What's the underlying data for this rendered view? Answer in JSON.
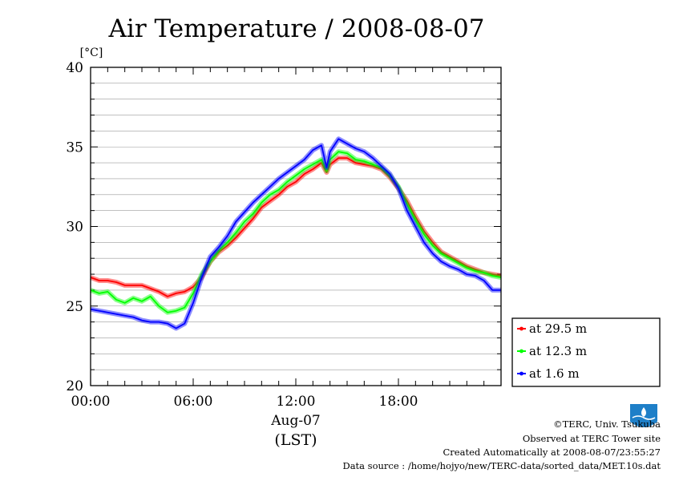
{
  "chart_data": {
    "type": "line",
    "title": "Air Temperature / 2008-08-07",
    "ylabel": "[°C]",
    "xlabel": "(LST)",
    "date_label": "Aug-07",
    "ylim": [
      20,
      40
    ],
    "xlim_hours": [
      0,
      24
    ],
    "yticks": [
      "20",
      "25",
      "30",
      "35",
      "40"
    ],
    "xticks": [
      {
        "h": 0,
        "label": "00:00"
      },
      {
        "h": 6,
        "label": "06:00"
      },
      {
        "h": 12,
        "label": "12:00"
      },
      {
        "h": 18,
        "label": "18:00"
      }
    ],
    "grid": true,
    "legend_position": "bottom-right",
    "series": [
      {
        "name": "at 29.5 m",
        "color": "#ff0000",
        "points": [
          [
            0,
            26.8
          ],
          [
            0.5,
            26.6
          ],
          [
            1,
            26.6
          ],
          [
            1.5,
            26.5
          ],
          [
            2,
            26.3
          ],
          [
            2.5,
            26.3
          ],
          [
            3,
            26.3
          ],
          [
            3.5,
            26.1
          ],
          [
            4,
            25.9
          ],
          [
            4.5,
            25.6
          ],
          [
            5,
            25.8
          ],
          [
            5.5,
            25.9
          ],
          [
            6,
            26.2
          ],
          [
            6.5,
            26.8
          ],
          [
            7,
            27.8
          ],
          [
            7.5,
            28.4
          ],
          [
            8,
            28.8
          ],
          [
            8.5,
            29.3
          ],
          [
            9,
            29.9
          ],
          [
            9.5,
            30.5
          ],
          [
            10,
            31.2
          ],
          [
            10.5,
            31.6
          ],
          [
            11,
            32.0
          ],
          [
            11.5,
            32.5
          ],
          [
            12,
            32.8
          ],
          [
            12.5,
            33.3
          ],
          [
            13,
            33.6
          ],
          [
            13.5,
            34.0
          ],
          [
            13.8,
            33.4
          ],
          [
            14,
            33.9
          ],
          [
            14.5,
            34.3
          ],
          [
            15,
            34.3
          ],
          [
            15.5,
            34.0
          ],
          [
            16,
            33.9
          ],
          [
            16.5,
            33.8
          ],
          [
            17,
            33.6
          ],
          [
            17.5,
            33.1
          ],
          [
            18,
            32.4
          ],
          [
            18.5,
            31.6
          ],
          [
            19,
            30.6
          ],
          [
            19.5,
            29.7
          ],
          [
            20,
            29.0
          ],
          [
            20.5,
            28.4
          ],
          [
            21,
            28.1
          ],
          [
            21.5,
            27.8
          ],
          [
            22,
            27.5
          ],
          [
            22.5,
            27.3
          ],
          [
            23,
            27.1
          ],
          [
            23.5,
            27.0
          ],
          [
            24,
            26.9
          ]
        ]
      },
      {
        "name": "at 12.3 m",
        "color": "#00ff00",
        "points": [
          [
            0,
            26.0
          ],
          [
            0.5,
            25.8
          ],
          [
            1,
            25.9
          ],
          [
            1.5,
            25.4
          ],
          [
            2,
            25.2
          ],
          [
            2.5,
            25.5
          ],
          [
            3,
            25.3
          ],
          [
            3.5,
            25.6
          ],
          [
            4,
            25.0
          ],
          [
            4.5,
            24.6
          ],
          [
            5,
            24.7
          ],
          [
            5.5,
            24.9
          ],
          [
            6,
            25.8
          ],
          [
            6.5,
            27.0
          ],
          [
            7,
            27.8
          ],
          [
            7.5,
            28.5
          ],
          [
            8,
            29.0
          ],
          [
            8.5,
            29.6
          ],
          [
            9,
            30.3
          ],
          [
            9.5,
            30.8
          ],
          [
            10,
            31.5
          ],
          [
            10.5,
            32.0
          ],
          [
            11,
            32.3
          ],
          [
            11.5,
            32.8
          ],
          [
            12,
            33.2
          ],
          [
            12.5,
            33.6
          ],
          [
            13,
            33.9
          ],
          [
            13.5,
            34.2
          ],
          [
            13.8,
            33.5
          ],
          [
            14,
            34.2
          ],
          [
            14.5,
            34.7
          ],
          [
            15,
            34.6
          ],
          [
            15.5,
            34.2
          ],
          [
            16,
            34.1
          ],
          [
            16.5,
            33.9
          ],
          [
            17,
            33.7
          ],
          [
            17.5,
            33.2
          ],
          [
            18,
            32.5
          ],
          [
            18.5,
            31.4
          ],
          [
            19,
            30.4
          ],
          [
            19.5,
            29.5
          ],
          [
            20,
            28.8
          ],
          [
            20.5,
            28.3
          ],
          [
            21,
            28.0
          ],
          [
            21.5,
            27.7
          ],
          [
            22,
            27.4
          ],
          [
            22.5,
            27.2
          ],
          [
            23,
            27.1
          ],
          [
            23.5,
            26.9
          ],
          [
            24,
            26.8
          ]
        ]
      },
      {
        "name": "at 1.6 m",
        "color": "#0000ff",
        "points": [
          [
            0,
            24.8
          ],
          [
            0.5,
            24.7
          ],
          [
            1,
            24.6
          ],
          [
            1.5,
            24.5
          ],
          [
            2,
            24.4
          ],
          [
            2.5,
            24.3
          ],
          [
            3,
            24.1
          ],
          [
            3.5,
            24.0
          ],
          [
            4,
            24.0
          ],
          [
            4.5,
            23.9
          ],
          [
            5,
            23.6
          ],
          [
            5.5,
            23.9
          ],
          [
            6,
            25.2
          ],
          [
            6.5,
            26.8
          ],
          [
            7,
            28.1
          ],
          [
            7.5,
            28.7
          ],
          [
            8,
            29.4
          ],
          [
            8.5,
            30.3
          ],
          [
            9,
            30.9
          ],
          [
            9.5,
            31.5
          ],
          [
            10,
            32.0
          ],
          [
            10.5,
            32.5
          ],
          [
            11,
            33.0
          ],
          [
            11.5,
            33.4
          ],
          [
            12,
            33.8
          ],
          [
            12.5,
            34.2
          ],
          [
            13,
            34.8
          ],
          [
            13.5,
            35.1
          ],
          [
            13.8,
            33.7
          ],
          [
            14,
            34.7
          ],
          [
            14.5,
            35.5
          ],
          [
            15,
            35.2
          ],
          [
            15.5,
            34.9
          ],
          [
            16,
            34.7
          ],
          [
            16.5,
            34.3
          ],
          [
            17,
            33.8
          ],
          [
            17.5,
            33.3
          ],
          [
            18,
            32.4
          ],
          [
            18.5,
            31.0
          ],
          [
            19,
            30.0
          ],
          [
            19.5,
            29.0
          ],
          [
            20,
            28.3
          ],
          [
            20.5,
            27.8
          ],
          [
            21,
            27.5
          ],
          [
            21.5,
            27.3
          ],
          [
            22,
            27.0
          ],
          [
            22.5,
            26.9
          ],
          [
            23,
            26.6
          ],
          [
            23.5,
            26.0
          ],
          [
            24,
            26.0
          ]
        ]
      }
    ]
  },
  "footer": {
    "copyright": "©TERC, Univ. Tsukuba",
    "site": "Observed at TERC Tower site",
    "created": "Created Automatically at 2008-08-07/23:55:27",
    "source": "Data source : /home/hojyo/new/TERC-data/sorted_data/MET.10s.dat"
  },
  "logo": {
    "label": "TERC",
    "color": "#1e7fc8"
  }
}
